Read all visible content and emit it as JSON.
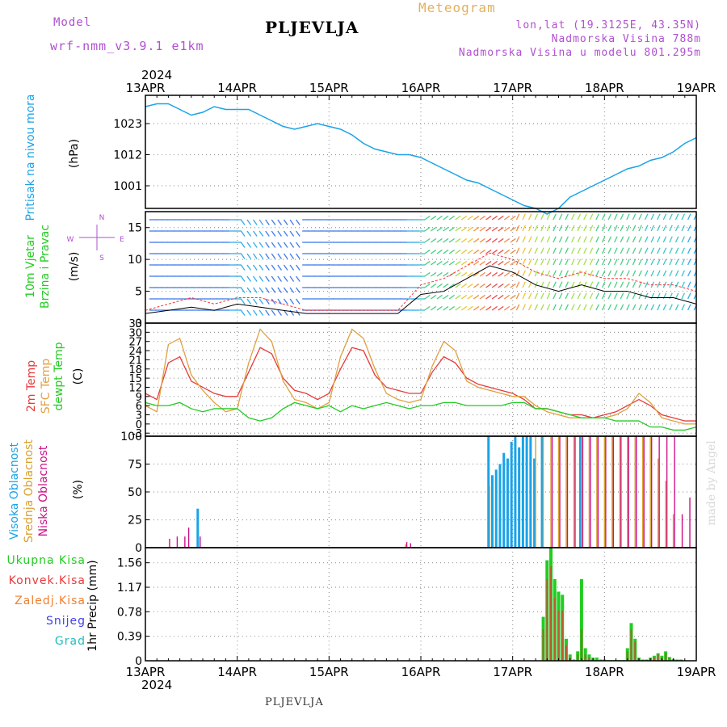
{
  "header": {
    "model_label": "Model",
    "model_name": "wrf-nmm_v3.9.1  e1km",
    "station": "PLJEVLJA",
    "meteogram": "Meteogram",
    "lonlat": "lon,lat (19.3125E, 43.35N)",
    "altitude": "Nadmorska Visina 788m",
    "model_altitude": "Nadmorska Visina u modelu 801.295m",
    "footer_station": "PLJEVLJA",
    "credit": "made by Angel"
  },
  "time_axis": {
    "year_top": "2024",
    "year_bottom": "2024",
    "labels": [
      "13APR",
      "14APR",
      "15APR",
      "16APR",
      "17APR",
      "18APR",
      "19APR"
    ],
    "hours_total": 144
  },
  "colors": {
    "pressure": "#1aa3e8",
    "wind_speed": "#000000",
    "wind_gust": "#ff3333",
    "temp2m": "#e83a3a",
    "sfc_temp": "#e0a040",
    "dewpoint": "#22cc22",
    "cloud_high": "#1aa3e8",
    "cloud_mid": "#d8a030",
    "cloud_low": "#cc1188",
    "precip_total": "#22cc22",
    "precip_conv": "#e83a3a",
    "grid": "#999999"
  },
  "panels": {
    "pressure": {
      "label": "Pritisak na nivou mora",
      "unit": "(hPa)"
    },
    "wind": {
      "label1": "10m Vjetar",
      "label2": "Brzina i Pravac",
      "unit": "(m/s)",
      "compass_n": "N",
      "compass_s": "S",
      "compass_e": "E",
      "compass_w": "W"
    },
    "temp": {
      "label1": "2m Temp",
      "label2": "SFC Temp",
      "label3": "dewpt Temp",
      "unit": "(C)"
    },
    "cloud": {
      "label1": "Visoka Oblacnost",
      "label2": "Srednja Oblacnost",
      "label3": "Niska Oblacnost",
      "unit": "(%)"
    },
    "precip": {
      "unit": "1hr Precip (mm)",
      "legend": [
        "Ukupna Kisa",
        "Konvek.Kisa",
        "Zaledj.Kisa",
        "Snijeg",
        "Grad"
      ],
      "legend_colors": [
        "#22cc22",
        "#e83a3a",
        "#f08030",
        "#4040ee",
        "#22bbbb"
      ]
    }
  },
  "chart_data": [
    {
      "type": "line",
      "name": "pressure",
      "yticks": [
        1001,
        1012,
        1023
      ],
      "ylim": [
        993,
        1033
      ],
      "x": [
        0,
        3,
        6,
        9,
        12,
        15,
        18,
        21,
        24,
        27,
        30,
        33,
        36,
        39,
        42,
        45,
        48,
        51,
        54,
        57,
        60,
        63,
        66,
        69,
        72,
        75,
        78,
        81,
        84,
        87,
        90,
        93,
        96,
        99,
        102,
        105,
        108,
        111,
        114,
        117,
        120,
        123,
        126,
        129,
        132,
        135,
        138,
        141,
        144
      ],
      "values": [
        1029,
        1030,
        1030,
        1028,
        1026,
        1027,
        1029,
        1028,
        1028,
        1028,
        1026,
        1024,
        1022,
        1021,
        1022,
        1023,
        1022,
        1021,
        1019,
        1016,
        1014,
        1013,
        1012,
        1012,
        1011,
        1009,
        1007,
        1005,
        1003,
        1002,
        1000,
        998,
        996,
        994,
        993,
        991,
        993,
        997,
        999,
        1001,
        1003,
        1005,
        1007,
        1008,
        1010,
        1011,
        1013,
        1016,
        1018
      ]
    },
    {
      "type": "line",
      "name": "wind",
      "yticks": [
        0,
        5,
        10,
        15
      ],
      "ylim": [
        0,
        17.5
      ],
      "x": [
        0,
        6,
        12,
        18,
        24,
        30,
        36,
        42,
        48,
        54,
        60,
        66,
        72,
        78,
        84,
        90,
        96,
        102,
        108,
        114,
        120,
        126,
        132,
        138,
        144
      ],
      "values": [
        1.5,
        2,
        2.5,
        2,
        3,
        2.5,
        2,
        1.5,
        1.5,
        1.5,
        1.5,
        1.5,
        4.5,
        5,
        7,
        9,
        8,
        6,
        5,
        6,
        5,
        5,
        4,
        4,
        3
      ],
      "gust": [
        2,
        3,
        4,
        3,
        4,
        4,
        3,
        2,
        2,
        2,
        2,
        2,
        6,
        7,
        9,
        11,
        10,
        8,
        7,
        8,
        7,
        7,
        6,
        6,
        5
      ]
    },
    {
      "type": "line",
      "name": "temperature",
      "yticks": [
        -3,
        0,
        3,
        6,
        9,
        12,
        15,
        18,
        21,
        24,
        27,
        30,
        33
      ],
      "ylim": [
        -4,
        33
      ],
      "x": [
        0,
        3,
        6,
        9,
        12,
        15,
        18,
        21,
        24,
        27,
        30,
        33,
        36,
        39,
        42,
        45,
        48,
        51,
        54,
        57,
        60,
        63,
        66,
        69,
        72,
        75,
        78,
        81,
        84,
        87,
        90,
        93,
        96,
        99,
        102,
        105,
        108,
        111,
        114,
        117,
        120,
        123,
        126,
        129,
        132,
        135,
        138,
        141,
        144
      ],
      "series": [
        {
          "name": "2m Temp",
          "values": [
            10,
            8,
            20,
            22,
            14,
            12,
            10,
            9,
            9,
            17,
            25,
            23,
            15,
            11,
            10,
            8,
            10,
            18,
            25,
            24,
            16,
            12,
            11,
            10,
            10,
            17,
            22,
            20,
            15,
            13,
            12,
            11,
            10,
            8,
            5,
            5,
            4,
            3,
            3,
            2,
            3,
            4,
            6,
            8,
            6,
            3,
            2,
            1,
            1
          ]
        },
        {
          "name": "SFC Temp",
          "values": [
            6,
            4,
            26,
            28,
            16,
            11,
            7,
            4,
            5,
            20,
            31,
            27,
            14,
            8,
            7,
            5,
            7,
            22,
            31,
            28,
            18,
            10,
            8,
            7,
            8,
            19,
            27,
            24,
            14,
            12,
            11,
            10,
            9,
            9,
            6,
            4,
            3,
            2,
            2,
            2,
            2,
            3,
            5,
            10,
            7,
            2,
            1,
            0,
            0
          ]
        },
        {
          "name": "dewpt Temp",
          "values": [
            7,
            6,
            6,
            7,
            5,
            4,
            5,
            5,
            5,
            2,
            1,
            2,
            5,
            7,
            6,
            5,
            6,
            4,
            6,
            5,
            6,
            7,
            6,
            5,
            6,
            6,
            7,
            7,
            6,
            6,
            6,
            6,
            7,
            7,
            5,
            5,
            4,
            3,
            2,
            2,
            2,
            1,
            1,
            1,
            -1,
            -1,
            -2,
            -2,
            -1
          ]
        }
      ]
    },
    {
      "type": "bar",
      "name": "cloud",
      "yticks": [
        0,
        25,
        50,
        75,
        100
      ],
      "ylim": [
        0,
        100
      ],
      "x": [
        6,
        8,
        10,
        11,
        14,
        15,
        68,
        69,
        90,
        91,
        92,
        93,
        94,
        95,
        96,
        97,
        98,
        99,
        100,
        101,
        102,
        104,
        106,
        108,
        110,
        112,
        114,
        116,
        118,
        120,
        122,
        124,
        126,
        128,
        130,
        132,
        134,
        136,
        138,
        140,
        142
      ],
      "series": [
        {
          "name": "Visoka Oblacnost",
          "values": [
            0,
            0,
            0,
            0,
            35,
            0,
            0,
            0,
            100,
            65,
            70,
            75,
            85,
            80,
            95,
            100,
            90,
            100,
            100,
            100,
            80,
            100,
            0,
            0,
            0,
            0,
            100,
            0,
            0,
            0,
            0,
            0,
            0,
            0,
            0,
            0,
            0,
            0,
            0,
            0,
            0
          ]
        },
        {
          "name": "Srednja Oblacnost",
          "values": [
            0,
            0,
            0,
            0,
            0,
            0,
            3,
            0,
            55,
            0,
            0,
            0,
            0,
            0,
            0,
            0,
            0,
            0,
            0,
            0,
            100,
            100,
            100,
            100,
            100,
            100,
            100,
            100,
            100,
            100,
            100,
            100,
            100,
            100,
            100,
            100,
            80,
            60,
            30,
            0,
            0
          ]
        },
        {
          "name": "Niska Oblacnost",
          "values": [
            8,
            10,
            10,
            18,
            10,
            0,
            5,
            4,
            0,
            0,
            0,
            0,
            0,
            0,
            0,
            0,
            0,
            0,
            0,
            0,
            0,
            0,
            100,
            100,
            100,
            100,
            100,
            100,
            100,
            100,
            100,
            100,
            100,
            100,
            100,
            100,
            100,
            100,
            100,
            30,
            45
          ]
        }
      ]
    },
    {
      "type": "bar",
      "name": "precipitation",
      "yticks": [
        0,
        0.39,
        0.78,
        1.17,
        1.56
      ],
      "ylim": [
        0,
        1.8
      ],
      "x": [
        104,
        105,
        106,
        107,
        108,
        109,
        110,
        111,
        112,
        113,
        114,
        115,
        116,
        117,
        118,
        119,
        120,
        121,
        122,
        123,
        124,
        125,
        126,
        127,
        128,
        129,
        130,
        131,
        132,
        133,
        134,
        135,
        136,
        137,
        138,
        139,
        140
      ],
      "series": [
        {
          "name": "Ukupna Kisa",
          "values": [
            0.7,
            1.6,
            1.8,
            1.3,
            1.1,
            1.05,
            0.35,
            0.1,
            0.02,
            0.15,
            1.3,
            0.2,
            0.1,
            0.05,
            0.05,
            0.02,
            0.02,
            0.01,
            0.01,
            0.01,
            0.01,
            0.01,
            0.2,
            0.6,
            0.35,
            0.05,
            0.02,
            0.02,
            0.05,
            0.08,
            0.12,
            0.08,
            0.15,
            0.06,
            0.03,
            0.02,
            0.02
          ]
        },
        {
          "name": "Konvek.Kisa",
          "values": [
            0.5,
            1.3,
            1.5,
            1.0,
            0.8,
            0.8,
            0.25,
            0.05,
            0,
            0.1,
            0.5,
            0.1,
            0.05,
            0,
            0,
            0,
            0,
            0,
            0,
            0,
            0,
            0,
            0.15,
            0.5,
            0.3,
            0.03,
            0,
            0,
            0.03,
            0.05,
            0.1,
            0.05,
            0.12,
            0.04,
            0,
            0,
            0
          ]
        }
      ]
    }
  ]
}
